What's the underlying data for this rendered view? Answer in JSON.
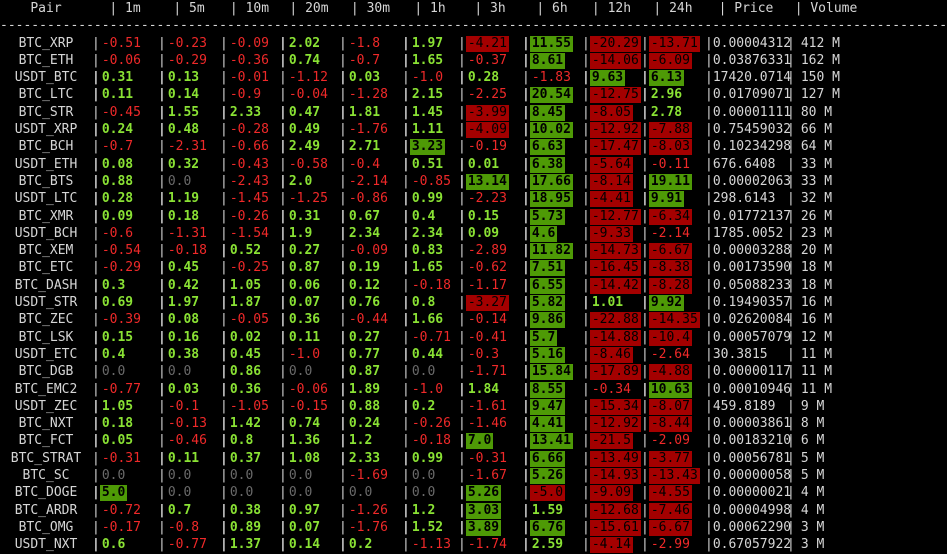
{
  "header": [
    "Pair",
    "1m",
    "5m",
    "10m",
    "20m",
    "30m",
    "1h",
    "3h",
    "6h",
    "12h",
    "24h",
    "Price",
    "Volume"
  ],
  "separator": "-------------------------------------------------------------------------------------------------------------------------",
  "colors": {
    "positive": "#8ae234",
    "negative": "#ef2929",
    "zero": "#6a6a6a",
    "pos_bg": "#4e9a06",
    "neg_bg": "#a40000",
    "text": "#d6d6d6"
  },
  "rows": [
    {
      "pair": "BTC_XRP",
      "v": [
        "-0.51",
        "-0.23",
        "-0.09",
        "2.02",
        "-1.8",
        "1.97",
        "-4.21",
        "11.55",
        "-20.29",
        "-13.71"
      ],
      "price": "0.00004312",
      "volume": "412 M"
    },
    {
      "pair": "BTC_ETH",
      "v": [
        "-0.06",
        "-0.29",
        "-0.36",
        "0.74",
        "-0.7",
        "1.65",
        "-0.37",
        "8.61",
        "-14.06",
        "-6.09"
      ],
      "price": "0.03876331",
      "volume": "162 M"
    },
    {
      "pair": "USDT_BTC",
      "v": [
        "0.31",
        "0.13",
        "-0.01",
        "-1.12",
        "0.03",
        "-1.0",
        "0.28",
        "-1.83",
        "9.63",
        "6.13"
      ],
      "price": "17420.0714",
      "volume": "150 M"
    },
    {
      "pair": "BTC_LTC",
      "v": [
        "0.11",
        "0.14",
        "-0.9",
        "-0.04",
        "-1.28",
        "2.15",
        "-2.25",
        "20.54",
        "-12.75",
        "2.96"
      ],
      "price": "0.01709071",
      "volume": "127 M"
    },
    {
      "pair": "BTC_STR",
      "v": [
        "-0.45",
        "1.55",
        "2.33",
        "0.47",
        "1.81",
        "1.45",
        "-3.99",
        "8.45",
        "-8.05",
        "2.78"
      ],
      "price": "0.00001111",
      "volume": "80 M"
    },
    {
      "pair": "USDT_XRP",
      "v": [
        "0.24",
        "0.48",
        "-0.28",
        "0.49",
        "-1.76",
        "1.11",
        "-4.09",
        "10.02",
        "-12.92",
        "-7.88"
      ],
      "price": "0.75459032",
      "volume": "66 M"
    },
    {
      "pair": "BTC_BCH",
      "v": [
        "-0.7",
        "-2.31",
        "-0.66",
        "2.49",
        "2.71",
        "3.23",
        "-0.19",
        "6.63",
        "-17.47",
        "-8.03"
      ],
      "price": "0.10234298",
      "volume": "64 M"
    },
    {
      "pair": "USDT_ETH",
      "v": [
        "0.08",
        "0.32",
        "-0.43",
        "-0.58",
        "-0.4",
        "0.51",
        "0.01",
        "6.38",
        "-5.64",
        "-0.11"
      ],
      "price": "676.6408",
      "volume": "33 M"
    },
    {
      "pair": "BTC_BTS",
      "v": [
        "0.88",
        "0.0",
        "-2.43",
        "2.0",
        "-2.14",
        "-0.85",
        "13.14",
        "17.66",
        "-8.14",
        "19.11"
      ],
      "price": "0.00002063",
      "volume": "33 M"
    },
    {
      "pair": "USDT_LTC",
      "v": [
        "0.28",
        "1.19",
        "-1.45",
        "-1.25",
        "-0.86",
        "0.99",
        "-2.23",
        "18.95",
        "-4.41",
        "9.91"
      ],
      "price": "298.6143",
      "volume": "32 M"
    },
    {
      "pair": "BTC_XMR",
      "v": [
        "0.09",
        "0.18",
        "-0.26",
        "0.31",
        "0.67",
        "0.4",
        "0.15",
        "5.73",
        "-12.77",
        "-6.34"
      ],
      "price": "0.01772137",
      "volume": "26 M"
    },
    {
      "pair": "USDT_BCH",
      "v": [
        "-0.6",
        "-1.31",
        "-1.54",
        "1.9",
        "2.34",
        "2.34",
        "0.09",
        "4.6",
        "-9.33",
        "-2.14"
      ],
      "price": "1785.0052",
      "volume": "23 M"
    },
    {
      "pair": "BTC_XEM",
      "v": [
        "-0.54",
        "-0.18",
        "0.52",
        "0.27",
        "-0.09",
        "0.83",
        "-2.89",
        "11.82",
        "-14.73",
        "-6.67"
      ],
      "price": "0.00003288",
      "volume": "20 M"
    },
    {
      "pair": "BTC_ETC",
      "v": [
        "-0.29",
        "0.45",
        "-0.25",
        "0.87",
        "0.19",
        "1.65",
        "-0.62",
        "7.51",
        "-16.45",
        "-8.38"
      ],
      "price": "0.00173590",
      "volume": "18 M"
    },
    {
      "pair": "BTC_DASH",
      "v": [
        "0.3",
        "0.42",
        "1.05",
        "0.06",
        "0.12",
        "-0.18",
        "-1.17",
        "6.55",
        "-14.42",
        "-8.28"
      ],
      "price": "0.05088233",
      "volume": "18 M"
    },
    {
      "pair": "USDT_STR",
      "v": [
        "0.69",
        "1.97",
        "1.87",
        "0.07",
        "0.76",
        "0.8",
        "-3.27",
        "5.82",
        "1.01",
        "9.92"
      ],
      "price": "0.19490357",
      "volume": "16 M"
    },
    {
      "pair": "BTC_ZEC",
      "v": [
        "-0.39",
        "0.08",
        "-0.05",
        "0.36",
        "-0.44",
        "1.66",
        "-0.14",
        "9.86",
        "-22.88",
        "-14.35"
      ],
      "price": "0.02620084",
      "volume": "16 M"
    },
    {
      "pair": "BTC_LSK",
      "v": [
        "0.15",
        "0.16",
        "0.02",
        "0.11",
        "0.27",
        "-0.71",
        "-0.41",
        "5.7",
        "-14.88",
        "-10.4"
      ],
      "price": "0.00057079",
      "volume": "12 M"
    },
    {
      "pair": "USDT_ETC",
      "v": [
        "0.4",
        "0.38",
        "0.45",
        "-1.0",
        "0.77",
        "0.44",
        "-0.3",
        "5.16",
        "-8.46",
        "-2.64"
      ],
      "price": "30.3815",
      "volume": "11 M"
    },
    {
      "pair": "BTC_DGB",
      "v": [
        "0.0",
        "0.0",
        "0.86",
        "0.0",
        "0.87",
        "0.0",
        "-1.71",
        "15.84",
        "-17.89",
        "-4.88"
      ],
      "price": "0.00000117",
      "volume": "11 M"
    },
    {
      "pair": "BTC_EMC2",
      "v": [
        "-0.77",
        "0.03",
        "0.36",
        "-0.06",
        "1.89",
        "-1.0",
        "1.84",
        "8.55",
        "-0.34",
        "10.63"
      ],
      "price": "0.00010946",
      "volume": "11 M"
    },
    {
      "pair": "USDT_ZEC",
      "v": [
        "1.05",
        "-0.1",
        "-1.05",
        "-0.15",
        "0.88",
        "0.2",
        "-1.61",
        "9.47",
        "-15.34",
        "-8.07"
      ],
      "price": "459.8189",
      "volume": "9 M"
    },
    {
      "pair": "BTC_NXT",
      "v": [
        "0.18",
        "-0.13",
        "1.42",
        "0.74",
        "0.24",
        "-0.26",
        "-1.46",
        "4.41",
        "-12.92",
        "-8.44"
      ],
      "price": "0.00003861",
      "volume": "8 M"
    },
    {
      "pair": "BTC_FCT",
      "v": [
        "0.05",
        "-0.46",
        "0.8",
        "1.36",
        "1.2",
        "-0.18",
        "7.0",
        "13.41",
        "-21.5",
        "-2.09"
      ],
      "price": "0.00183210",
      "volume": "6 M"
    },
    {
      "pair": "BTC_STRAT",
      "v": [
        "-0.31",
        "0.11",
        "0.37",
        "1.08",
        "2.33",
        "0.99",
        "-0.31",
        "6.66",
        "-13.49",
        "-3.77"
      ],
      "price": "0.00056781",
      "volume": "5 M"
    },
    {
      "pair": "BTC_SC",
      "v": [
        "0.0",
        "0.0",
        "0.0",
        "0.0",
        "-1.69",
        "0.0",
        "-1.67",
        "5.26",
        "-14.93",
        "-13.43"
      ],
      "price": "0.00000058",
      "volume": "5 M"
    },
    {
      "pair": "BTC_DOGE",
      "v": [
        "5.0",
        "0.0",
        "0.0",
        "0.0",
        "0.0",
        "0.0",
        "5.26",
        "-5.0",
        "-9.09",
        "-4.55"
      ],
      "price": "0.00000021",
      "volume": "4 M"
    },
    {
      "pair": "BTC_ARDR",
      "v": [
        "-0.72",
        "0.7",
        "0.38",
        "0.97",
        "-1.26",
        "1.2",
        "3.03",
        "1.59",
        "-12.68",
        "-7.46"
      ],
      "price": "0.00004998",
      "volume": "4 M"
    },
    {
      "pair": "BTC_OMG",
      "v": [
        "-0.17",
        "-0.8",
        "0.89",
        "0.07",
        "-1.76",
        "1.52",
        "3.89",
        "6.76",
        "-15.61",
        "-6.67"
      ],
      "price": "0.00062290",
      "volume": "3 M"
    },
    {
      "pair": "USDT_NXT",
      "v": [
        "0.6",
        "-0.77",
        "1.37",
        "0.14",
        "0.2",
        "-1.13",
        "-1.74",
        "2.59",
        "-4.14",
        "-2.99"
      ],
      "price": "0.67057922",
      "volume": "3 M"
    }
  ],
  "highlight_threshold": 3.0
}
